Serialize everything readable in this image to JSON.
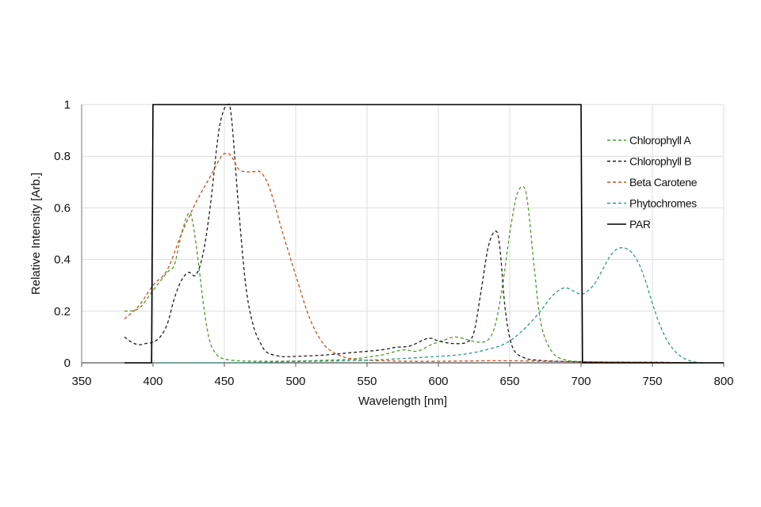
{
  "chart_data": {
    "type": "line",
    "title": "",
    "xlabel": "Wavelength [nm]",
    "ylabel": "Relative Intensity [Arb.]",
    "xlim": [
      350,
      800
    ],
    "ylim": [
      0,
      1
    ],
    "x_ticks": [
      350,
      400,
      450,
      500,
      550,
      600,
      650,
      700,
      750,
      800
    ],
    "y_ticks": [
      0,
      0.2,
      0.4,
      0.6,
      0.8,
      1
    ],
    "x_tick_labels": [
      "350",
      "400",
      "450",
      "500",
      "550",
      "600",
      "650",
      "700",
      "750",
      "800"
    ],
    "y_tick_labels": [
      "0",
      "0.2",
      "0.4",
      "0.6",
      "0.8",
      "1"
    ],
    "grid": true,
    "legend_position": "right",
    "series": [
      {
        "name": "Chlorophyll A",
        "color": "#4f9a2e",
        "style": "dashed",
        "x": [
          380,
          390,
          400,
          410,
          415,
          420,
          425,
          428,
          432,
          436,
          440,
          445,
          450,
          460,
          480,
          500,
          520,
          540,
          560,
          575,
          585,
          595,
          605,
          612,
          620,
          628,
          635,
          640,
          645,
          650,
          655,
          660,
          663,
          667,
          672,
          680,
          690,
          700,
          720,
          750,
          780
        ],
        "y": [
          0.2,
          0.21,
          0.28,
          0.35,
          0.38,
          0.5,
          0.58,
          0.54,
          0.38,
          0.2,
          0.08,
          0.03,
          0.015,
          0.008,
          0.006,
          0.007,
          0.01,
          0.015,
          0.03,
          0.05,
          0.045,
          0.07,
          0.09,
          0.1,
          0.09,
          0.08,
          0.09,
          0.15,
          0.3,
          0.5,
          0.65,
          0.68,
          0.6,
          0.38,
          0.15,
          0.04,
          0.01,
          0.005,
          0.002,
          0.0,
          0.0
        ]
      },
      {
        "name": "Chlorophyll B",
        "color": "#1e1e1e",
        "style": "dashed",
        "x": [
          380,
          385,
          390,
          395,
          400,
          405,
          410,
          415,
          420,
          425,
          430,
          435,
          440,
          445,
          448,
          452,
          455,
          460,
          465,
          470,
          475,
          480,
          490,
          500,
          520,
          540,
          560,
          570,
          580,
          590,
          595,
          600,
          610,
          620,
          625,
          630,
          635,
          640,
          643,
          647,
          652,
          660,
          670,
          690,
          710,
          750,
          780
        ],
        "y": [
          0.1,
          0.08,
          0.07,
          0.075,
          0.08,
          0.1,
          0.15,
          0.25,
          0.32,
          0.35,
          0.34,
          0.42,
          0.6,
          0.85,
          0.95,
          1.0,
          0.95,
          0.6,
          0.3,
          0.15,
          0.08,
          0.04,
          0.025,
          0.025,
          0.03,
          0.04,
          0.05,
          0.06,
          0.065,
          0.09,
          0.095,
          0.085,
          0.075,
          0.08,
          0.12,
          0.28,
          0.45,
          0.51,
          0.45,
          0.2,
          0.06,
          0.02,
          0.01,
          0.005,
          0.003,
          0.002,
          0.0
        ]
      },
      {
        "name": "Beta Carotene",
        "color": "#c8501a",
        "style": "dashed",
        "x": [
          380,
          390,
          400,
          410,
          420,
          430,
          440,
          448,
          452,
          455,
          460,
          465,
          470,
          475,
          480,
          485,
          490,
          500,
          510,
          520,
          530,
          540,
          550,
          560,
          580,
          600,
          620,
          650,
          700,
          750,
          780
        ],
        "y": [
          0.17,
          0.22,
          0.3,
          0.36,
          0.5,
          0.62,
          0.72,
          0.8,
          0.81,
          0.8,
          0.75,
          0.74,
          0.74,
          0.74,
          0.7,
          0.62,
          0.52,
          0.34,
          0.17,
          0.07,
          0.03,
          0.015,
          0.01,
          0.008,
          0.006,
          0.006,
          0.007,
          0.008,
          0.004,
          0.002,
          0.0
        ]
      },
      {
        "name": "Phytochromes",
        "color": "#2a9d84",
        "style": "dashed",
        "x": [
          400,
          450,
          500,
          550,
          600,
          620,
          640,
          650,
          660,
          670,
          680,
          688,
          694,
          700,
          705,
          710,
          715,
          720,
          725,
          730,
          735,
          740,
          745,
          750,
          755,
          760,
          765,
          770,
          775,
          780,
          785
        ],
        "y": [
          0.0,
          0.0,
          0.005,
          0.01,
          0.025,
          0.035,
          0.06,
          0.085,
          0.13,
          0.19,
          0.26,
          0.29,
          0.28,
          0.265,
          0.28,
          0.31,
          0.36,
          0.41,
          0.44,
          0.445,
          0.43,
          0.39,
          0.32,
          0.23,
          0.15,
          0.09,
          0.05,
          0.025,
          0.01,
          0.003,
          0.0
        ]
      },
      {
        "name": "PAR",
        "color": "#000000",
        "style": "solid",
        "x": [
          380,
          399,
          400,
          700,
          701,
          800
        ],
        "y": [
          0,
          0,
          1,
          1,
          0,
          0
        ]
      }
    ]
  }
}
